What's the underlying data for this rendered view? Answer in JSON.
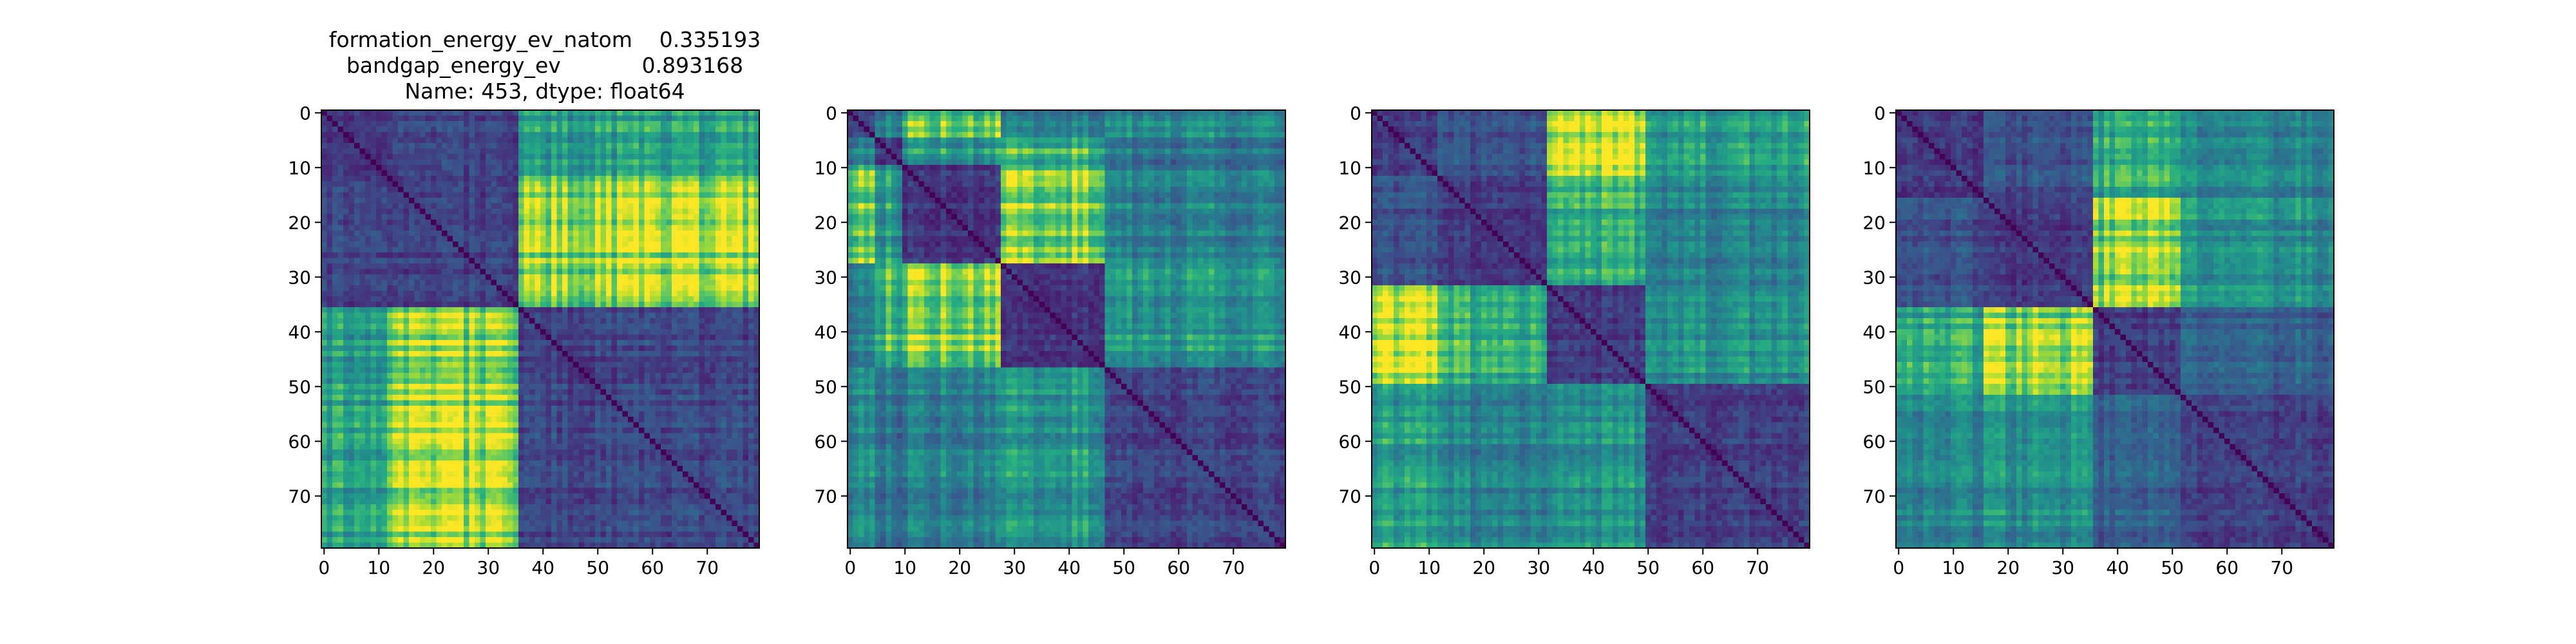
{
  "chart_data": [
    {
      "type": "heatmap",
      "title_lines": [
        "formation_energy_ev_natom    0.335193",
        "bandgap_energy_ev            0.893168",
        "Name: 453, dtype: float64"
      ],
      "size": 80,
      "xticks": [
        0,
        10,
        20,
        30,
        40,
        50,
        60,
        70
      ],
      "yticks": [
        0,
        10,
        20,
        30,
        40,
        50,
        60,
        70
      ],
      "x_tick_labels": [
        "0",
        "10",
        "20",
        "30",
        "40",
        "50",
        "60",
        "70"
      ],
      "y_tick_labels": [
        "0",
        "10",
        "20",
        "30",
        "40",
        "50",
        "60",
        "70"
      ],
      "colormap": "viridis",
      "blocks": [
        0,
        12,
        36,
        80
      ],
      "block_levels": [
        [
          0.18,
          0.22,
          0.58
        ],
        [
          0.22,
          0.2,
          0.84
        ],
        [
          0.58,
          0.84,
          0.22
        ]
      ]
    },
    {
      "type": "heatmap",
      "title_lines": [],
      "size": 80,
      "xticks": [
        0,
        10,
        20,
        30,
        40,
        50,
        60,
        70
      ],
      "yticks": [
        0,
        10,
        20,
        30,
        40,
        50,
        60,
        70
      ],
      "x_tick_labels": [
        "0",
        "10",
        "20",
        "30",
        "40",
        "50",
        "60",
        "70"
      ],
      "y_tick_labels": [
        "0",
        "10",
        "20",
        "30",
        "40",
        "50",
        "60",
        "70"
      ],
      "colormap": "viridis",
      "blocks": [
        0,
        5,
        10,
        28,
        47,
        80
      ],
      "block_levels": [
        [
          0.22,
          0.45,
          0.78,
          0.45,
          0.5
        ],
        [
          0.45,
          0.2,
          0.55,
          0.7,
          0.4
        ],
        [
          0.78,
          0.55,
          0.18,
          0.85,
          0.45
        ],
        [
          0.45,
          0.7,
          0.85,
          0.18,
          0.55
        ],
        [
          0.5,
          0.4,
          0.45,
          0.55,
          0.22
        ]
      ]
    },
    {
      "type": "heatmap",
      "title_lines": [],
      "size": 80,
      "xticks": [
        0,
        10,
        20,
        30,
        40,
        50,
        60,
        70
      ],
      "yticks": [
        0,
        10,
        20,
        30,
        40,
        50,
        60,
        70
      ],
      "x_tick_labels": [
        "0",
        "10",
        "20",
        "30",
        "40",
        "50",
        "60",
        "70"
      ],
      "y_tick_labels": [
        "0",
        "10",
        "20",
        "30",
        "40",
        "50",
        "60",
        "70"
      ],
      "colormap": "viridis",
      "blocks": [
        0,
        12,
        32,
        50,
        80
      ],
      "block_levels": [
        [
          0.18,
          0.25,
          0.88,
          0.55
        ],
        [
          0.25,
          0.18,
          0.62,
          0.45
        ],
        [
          0.88,
          0.62,
          0.18,
          0.5
        ],
        [
          0.55,
          0.45,
          0.5,
          0.2
        ]
      ]
    },
    {
      "type": "heatmap",
      "title_lines": [],
      "size": 80,
      "xticks": [
        0,
        10,
        20,
        30,
        40,
        50,
        60,
        70
      ],
      "yticks": [
        0,
        10,
        20,
        30,
        40,
        50,
        60,
        70
      ],
      "x_tick_labels": [
        "0",
        "10",
        "20",
        "30",
        "40",
        "50",
        "60",
        "70"
      ],
      "y_tick_labels": [
        "0",
        "10",
        "20",
        "30",
        "40",
        "50",
        "60",
        "70"
      ],
      "colormap": "viridis",
      "blocks": [
        0,
        16,
        36,
        52,
        80
      ],
      "block_levels": [
        [
          0.18,
          0.25,
          0.6,
          0.45
        ],
        [
          0.25,
          0.18,
          0.82,
          0.5
        ],
        [
          0.6,
          0.82,
          0.18,
          0.3
        ],
        [
          0.45,
          0.5,
          0.3,
          0.2
        ]
      ]
    }
  ]
}
